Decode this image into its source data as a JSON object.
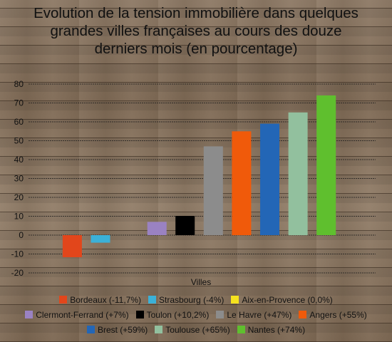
{
  "chart_data": {
    "type": "bar",
    "title": "Evolution de la tension immobilière dans quelques grandes villes françaises au cours des douze derniers mois (en pourcentage)",
    "title_lines": [
      "Evolution de la tension immobilière dans quelques",
      "grandes villes françaises au cours des douze",
      "derniers mois (en pourcentage)"
    ],
    "xlabel": "Villes",
    "ylabel": "",
    "ylim": [
      -20,
      80
    ],
    "yticks": [
      "80",
      "70",
      "60",
      "50",
      "40",
      "30",
      "20",
      "10",
      "0",
      "-10",
      "-20"
    ],
    "grid": true,
    "legend_position": "bottom",
    "series": [
      {
        "name": "Bordeaux (-11,7%)",
        "value": -11.7,
        "color": "#e2461b"
      },
      {
        "name": "Strasbourg (-4%)",
        "value": -4,
        "color": "#3bb1d8"
      },
      {
        "name": "Aix-en-Provence (0,0%)",
        "value": 0,
        "color": "#f5e21e"
      },
      {
        "name": "Clermont-Ferrand (+7%)",
        "value": 7,
        "color": "#9a82c2"
      },
      {
        "name": "Toulon (+10,2%)",
        "value": 10.2,
        "color": "#000000"
      },
      {
        "name": "Le Havre (+47%)",
        "value": 47,
        "color": "#8c8c8c"
      },
      {
        "name": "Angers (+55%)",
        "value": 55,
        "color": "#f05a0a"
      },
      {
        "name": "Brest (+59%)",
        "value": 59,
        "color": "#2366b6"
      },
      {
        "name": "Toulouse (+65%)",
        "value": 65,
        "color": "#92c09e"
      },
      {
        "name": "Nantes (+74%)",
        "value": 74,
        "color": "#5fbf2e"
      }
    ],
    "legend_rows": [
      [
        0,
        1,
        2
      ],
      [
        3,
        4,
        5,
        6
      ],
      [
        7,
        8,
        9
      ]
    ]
  }
}
